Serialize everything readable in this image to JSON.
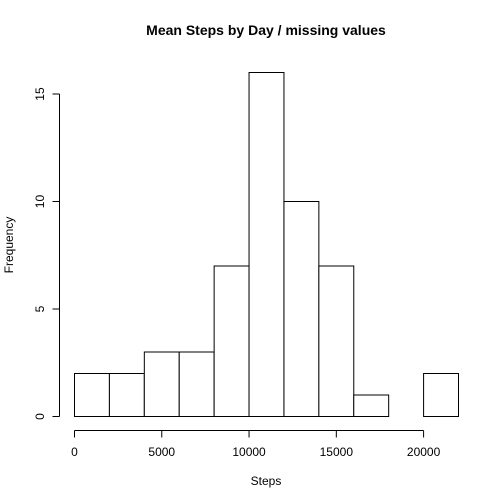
{
  "chart_data": {
    "type": "bar",
    "title": "Mean Steps by Day / missing values",
    "xlabel": "Steps",
    "ylabel": "Frequency",
    "bin_edges": [
      0,
      2000,
      4000,
      6000,
      8000,
      10000,
      12000,
      14000,
      16000,
      18000,
      20000,
      22000
    ],
    "values": [
      2,
      2,
      3,
      3,
      7,
      16,
      10,
      7,
      1,
      0,
      2
    ],
    "xlim": [
      0,
      22000
    ],
    "ylim": [
      0,
      17.5
    ],
    "x_ticks": [
      0,
      5000,
      10000,
      15000,
      20000
    ],
    "x_tick_labels": [
      "0",
      "5000",
      "10000",
      "15000",
      "20000"
    ],
    "y_ticks": [
      0,
      5,
      10,
      15
    ],
    "y_tick_labels": [
      "0",
      "5",
      "10",
      "15"
    ],
    "grid": false,
    "legend": "none"
  }
}
